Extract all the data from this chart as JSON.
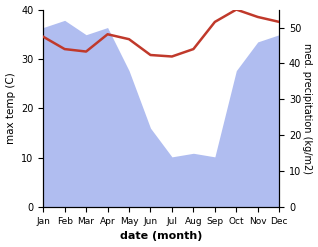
{
  "months": [
    "Jan",
    "Feb",
    "Mar",
    "Apr",
    "May",
    "Jun",
    "Jul",
    "Aug",
    "Sep",
    "Oct",
    "Nov",
    "Dec"
  ],
  "x": [
    0,
    1,
    2,
    3,
    4,
    5,
    6,
    7,
    8,
    9,
    10,
    11
  ],
  "temp": [
    34.5,
    32.0,
    31.5,
    35.0,
    34.0,
    30.8,
    30.5,
    32.0,
    37.5,
    40.0,
    38.5,
    37.5
  ],
  "precip": [
    50,
    52,
    48,
    50,
    38,
    22,
    14,
    15,
    14,
    38,
    46,
    48
  ],
  "temp_color": "#c0392b",
  "precip_fill_color": "#b0bdf0",
  "temp_ylim": [
    0,
    40
  ],
  "precip_ylim": [
    0,
    55
  ],
  "ylabel_left": "max temp (C)",
  "ylabel_right": "med. precipitation (kg/m2)",
  "xlabel": "date (month)",
  "temp_yticks": [
    0,
    10,
    20,
    30,
    40
  ],
  "precip_yticks": [
    0,
    10,
    20,
    30,
    40,
    50
  ],
  "bg_color": "#ffffff"
}
